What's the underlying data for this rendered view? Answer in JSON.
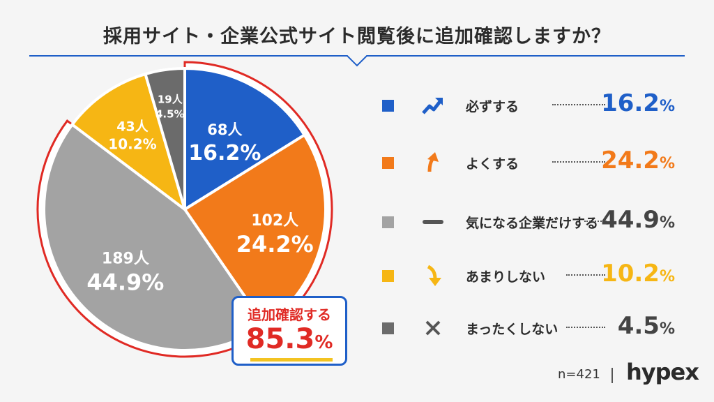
{
  "title": "採用サイト・企業公式サイト閲覧後に追加確認しますか？",
  "chart_data": {
    "type": "pie",
    "unit_people": "人",
    "unit_percent": "%",
    "slices": [
      {
        "label": "必ずする",
        "count": 68,
        "percent": 16.2,
        "color": "#1f5fc8"
      },
      {
        "label": "よくする",
        "count": 102,
        "percent": 24.2,
        "color": "#f27a1a"
      },
      {
        "label": "気になる企業だけする",
        "count": 189,
        "percent": 44.9,
        "color": "#a3a3a3"
      },
      {
        "label": "あまりしない",
        "count": 43,
        "percent": 10.2,
        "color": "#f6b614"
      },
      {
        "label": "まったくしない",
        "count": 19,
        "percent": 4.5,
        "color": "#6b6b6b"
      }
    ]
  },
  "legend": [
    {
      "label": "必ずする",
      "value": "16.2",
      "icon": "trending-up-icon",
      "color": "#1f5fc8"
    },
    {
      "label": "よくする",
      "value": "24.2",
      "icon": "arrow-up-icon",
      "color": "#f27a1a"
    },
    {
      "label": "気になる企業だけする",
      "value": "44.9",
      "icon": "dash-icon",
      "color": "#555555"
    },
    {
      "label": "あまりしない",
      "value": "10.2",
      "icon": "arrow-down-icon",
      "color": "#f6b614"
    },
    {
      "label": "まったくしない",
      "value": "4.5",
      "icon": "cross-icon",
      "color": "#555555"
    }
  ],
  "callout": {
    "label": "追加確認する",
    "value": "85.3",
    "pct": "%",
    "border_color": "#1f5fc8",
    "highlight_color": "#e02a24"
  },
  "footer": {
    "sample": "n=421",
    "brand": "hypex"
  },
  "colors": {
    "accent_blue": "#1f5fc8",
    "highlight_red": "#e02a24",
    "underline_yellow": "#f3c321"
  }
}
